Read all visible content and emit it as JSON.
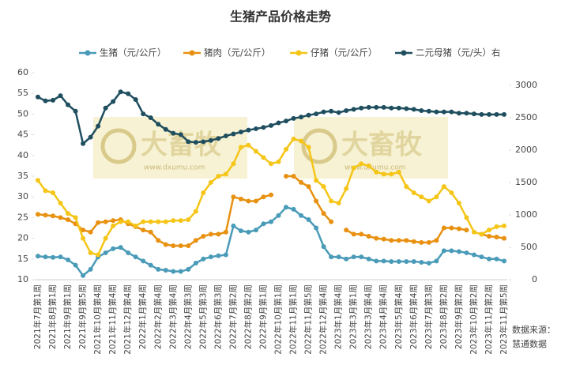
{
  "chart_data": {
    "type": "line",
    "title": "生猪产品价格走势",
    "categories": [
      "2021年7月第1周",
      null,
      "2021年8月第1周",
      null,
      "2021年9月第1周",
      null,
      "2021年9月第5周",
      null,
      "2021年10月第4周",
      null,
      "2021年11月第4周",
      null,
      "2021年12月第4周",
      null,
      "2022年1月第4周",
      null,
      "2022年2月第4周",
      null,
      "2022年3月第4周",
      null,
      "2022年4月第3周",
      null,
      "2022年5月第3周",
      null,
      "2022年6月第3周",
      null,
      "2022年7月第2周",
      null,
      "2022年8月第2周",
      null,
      "2022年9月第1周",
      null,
      "2022年10月第1周",
      null,
      "2022年11月第1周",
      null,
      "2022年11月第5周",
      null,
      "2022年12月第4周",
      null,
      "2023年1月第4周",
      null,
      "2023年3月第1周",
      null,
      "2023年3月第4周",
      null,
      "2023年4月第4周",
      null,
      "2023年5月第4周",
      null,
      "2023年6月第4周",
      null,
      "2023年7月第3周",
      null,
      "2023年8月第2周",
      null,
      "2023年9月第2周",
      null,
      "2023年10月第2周",
      null,
      "2023年11月第2周",
      null,
      "2023年11月第5周"
    ],
    "series": [
      {
        "name": "生猪（元/公斤）",
        "color": "#4a9bb8",
        "values": [
          15.7,
          15.5,
          15.4,
          15.5,
          14.8,
          13.5,
          11.0,
          12.5,
          15.5,
          16.5,
          17.5,
          17.8,
          16.5,
          15.5,
          14.5,
          13.5,
          12.5,
          12.3,
          12.0,
          12.0,
          12.5,
          14.0,
          15.0,
          15.5,
          15.8,
          16.0,
          23.0,
          21.8,
          21.5,
          22.0,
          23.5,
          24.0,
          25.5,
          27.5,
          27.0,
          25.5,
          24.5,
          22.5,
          18.0,
          15.5,
          15.5,
          15.0,
          15.5,
          15.5,
          15.0,
          14.5,
          14.5,
          14.4,
          14.4,
          14.4,
          14.4,
          14.2,
          14.0,
          14.5,
          17.0,
          17.0,
          16.8,
          16.5,
          16.0,
          15.5,
          15.0,
          15.0,
          14.5
        ]
      },
      {
        "name": "猪肉（元/公斤）",
        "color": "#e8900f",
        "values": [
          25.8,
          25.6,
          25.4,
          25.0,
          24.5,
          23.5,
          22.0,
          21.5,
          23.8,
          24.0,
          24.3,
          24.5,
          23.5,
          22.8,
          22.0,
          21.5,
          19.5,
          18.5,
          18.2,
          18.2,
          18.2,
          19.5,
          20.5,
          21.0,
          21.0,
          21.5,
          30.0,
          29.5,
          29.0,
          29.0,
          30.0,
          30.5,
          null,
          35.0,
          35.0,
          33.5,
          32.5,
          29.0,
          26.0,
          24.0,
          null,
          22.0,
          21.0,
          21.0,
          20.5,
          20.0,
          19.8,
          19.5,
          19.5,
          19.5,
          19.2,
          19.0,
          19.0,
          19.5,
          22.5,
          22.5,
          22.3,
          22.0,
          null,
          21.0,
          20.5,
          20.3,
          20.0
        ]
      },
      {
        "name": "仔猪（元/公斤）",
        "color": "#f5c518",
        "values": [
          34.0,
          31.5,
          31.0,
          28.5,
          26.0,
          25.0,
          20.0,
          16.5,
          16.0,
          20.0,
          23.0,
          24.0,
          24.0,
          23.0,
          24.0,
          24.0,
          24.0,
          24.0,
          24.3,
          24.3,
          24.5,
          26.5,
          31.0,
          33.5,
          35.0,
          35.5,
          38.0,
          42.0,
          42.5,
          41.0,
          39.5,
          38.0,
          38.5,
          41.5,
          44.0,
          43.5,
          42.0,
          34.0,
          32.5,
          29.0,
          28.5,
          32.0,
          37.0,
          38.0,
          37.5,
          36.0,
          35.5,
          35.5,
          36.0,
          32.5,
          31.0,
          30.0,
          29.0,
          30.0,
          32.5,
          31.0,
          28.5,
          25.0,
          21.5,
          21.0,
          22.0,
          22.8,
          23.0
        ]
      },
      {
        "name": "二元母猪（元/头）右",
        "color": "#1f4e5f",
        "axis": "y2",
        "values": [
          2820,
          2760,
          2770,
          2840,
          2700,
          2600,
          2100,
          2200,
          2370,
          2650,
          2750,
          2900,
          2870,
          2780,
          2560,
          2500,
          2400,
          2320,
          2260,
          2240,
          2130,
          2120,
          2130,
          2150,
          2180,
          2220,
          2250,
          2280,
          2310,
          2330,
          2350,
          2380,
          2420,
          2450,
          2490,
          2510,
          2540,
          2560,
          2590,
          2600,
          2580,
          2610,
          2630,
          2650,
          2660,
          2660,
          2660,
          2650,
          2650,
          2640,
          2630,
          2610,
          2600,
          2590,
          2590,
          2590,
          2570,
          2570,
          2560,
          2550,
          2550,
          2550,
          2550
        ]
      }
    ],
    "ylim": [
      10,
      60
    ],
    "yticks": [
      10,
      15,
      20,
      25,
      30,
      35,
      40,
      45,
      50,
      55,
      60
    ],
    "y2lim": [
      0,
      3000
    ],
    "y2ticks": [
      0,
      500,
      1000,
      1500,
      2000,
      2500,
      3000
    ],
    "watermark": [
      "大畜牧",
      "www.dxumu.com"
    ],
    "source": [
      "数据来源：",
      "慧通数据"
    ]
  }
}
